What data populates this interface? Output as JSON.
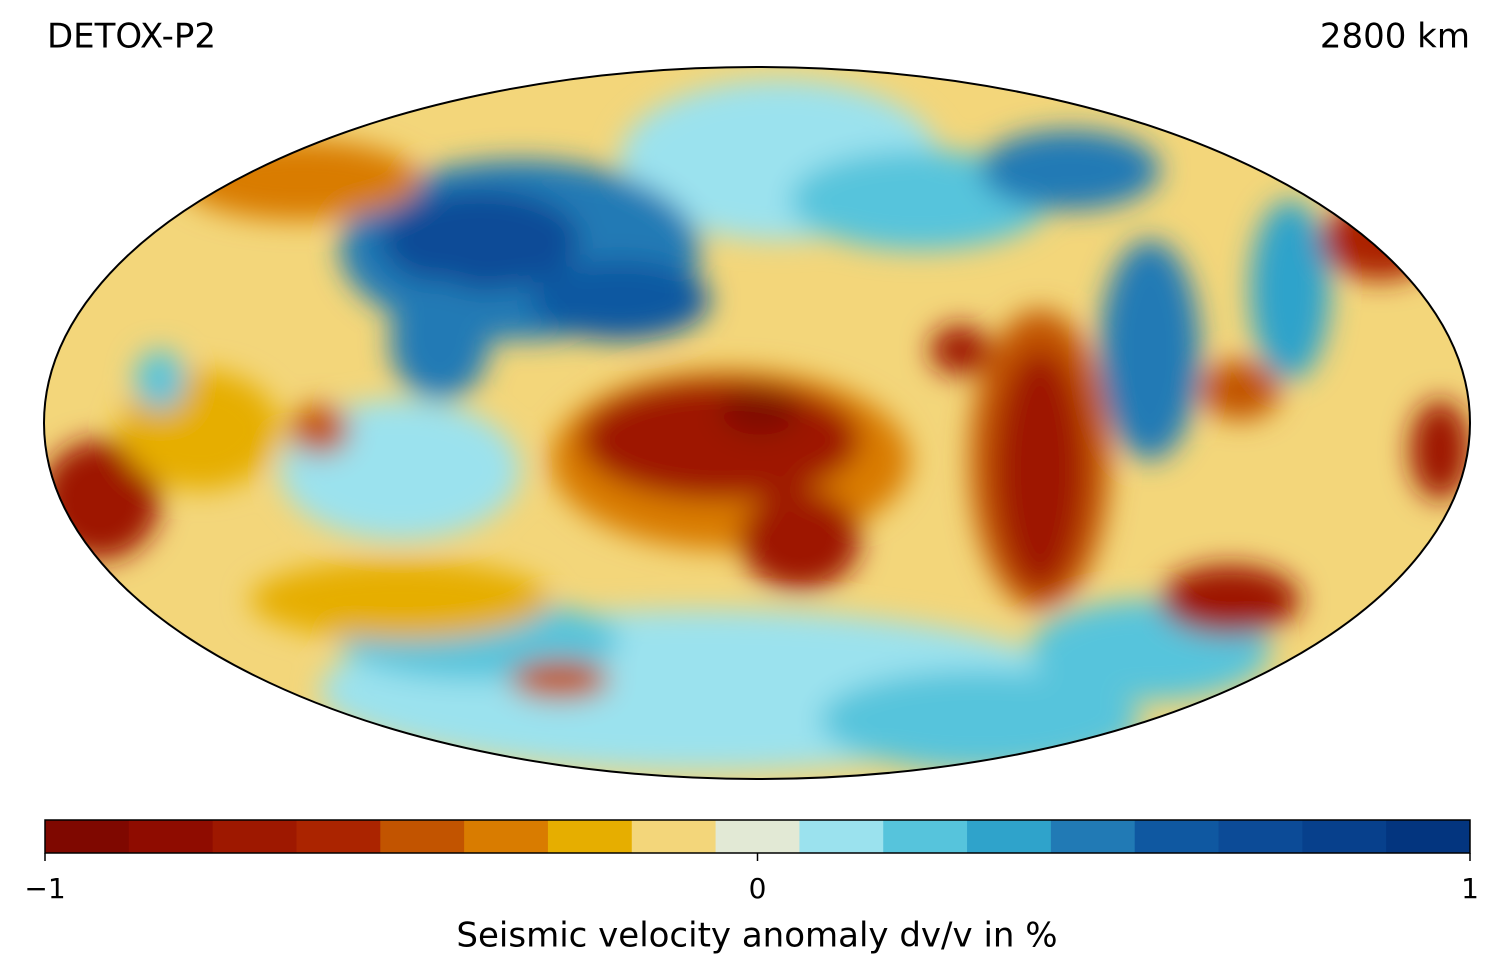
{
  "title": "DETOX-P2",
  "depth": "2800 km",
  "colorbar": {
    "label": "Seismic velocity anomaly dv/v in %",
    "lim": [
      -1,
      1
    ],
    "ticks": [
      {
        "value": -1,
        "label": "−1"
      },
      0,
      1
    ],
    "colors": [
      "#7f0800",
      "#8f0c00",
      "#9e1800",
      "#ab2400",
      "#c25400",
      "#d97c00",
      "#e6ae00",
      "#f3d67a",
      "#e2e9d5",
      "#9be2ee",
      "#56c4dc",
      "#2fa3cb",
      "#217ab5",
      "#0f58a1",
      "#0c4b97",
      "#07408c",
      "#03357f"
    ]
  }
}
